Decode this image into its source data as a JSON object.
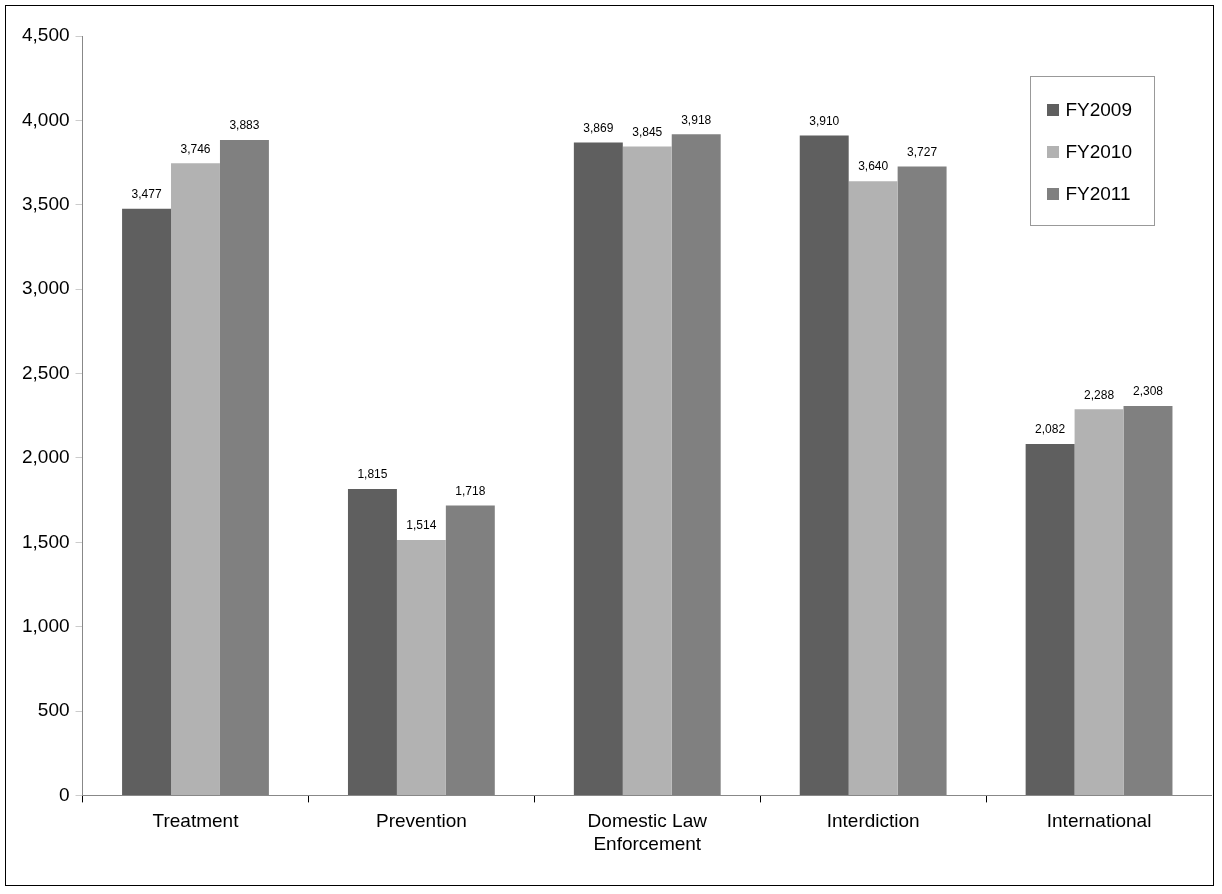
{
  "chart_data": {
    "type": "bar",
    "categories": [
      "Treatment",
      "Prevention",
      "Domestic Law Enforcement",
      "Interdiction",
      "International"
    ],
    "series": [
      {
        "name": "FY2009",
        "color": "#5f5f5f",
        "values": [
          3477,
          1815,
          3869,
          3910,
          2082
        ],
        "value_labels": [
          "3,477",
          "1,815",
          "3,869",
          "3,910",
          "2,082"
        ]
      },
      {
        "name": "FY2010",
        "color": "#b2b2b2",
        "values": [
          3746,
          1514,
          3845,
          3640,
          2288
        ],
        "value_labels": [
          "3,746",
          "1,514",
          "3,845",
          "3,640",
          "2,288"
        ]
      },
      {
        "name": "FY2011",
        "color": "#808080",
        "values": [
          3883,
          1718,
          3918,
          3727,
          2308
        ],
        "value_labels": [
          "3,883",
          "1,718",
          "3,918",
          "3,727",
          "2,308"
        ]
      }
    ],
    "ylim": [
      0,
      4500
    ],
    "yticks": [
      0,
      {
        "value": 500,
        "label": "500"
      },
      {
        "value": 1000,
        "label": "1,000"
      },
      {
        "value": 1500,
        "label": "1,500"
      },
      {
        "value": 2000,
        "label": "2,000"
      },
      {
        "value": 2500,
        "label": "2,500"
      },
      {
        "value": 3000,
        "label": "3,000"
      },
      {
        "value": 3500,
        "label": "3,500"
      },
      {
        "value": 4000,
        "label": "4,000"
      },
      {
        "value": 4500,
        "label": "4,500"
      }
    ],
    "legend": "top right"
  }
}
